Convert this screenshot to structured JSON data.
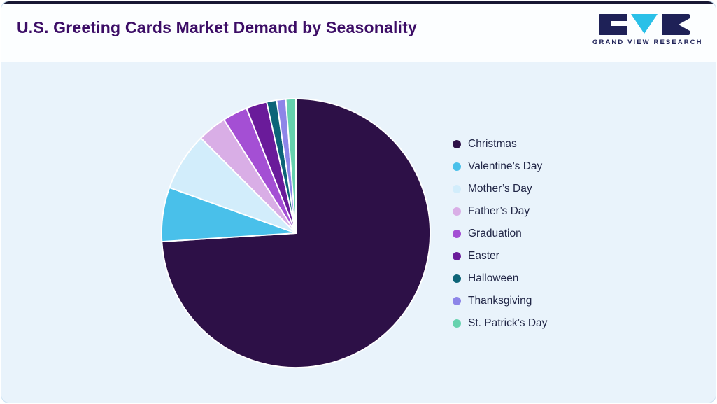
{
  "header": {
    "title": "U.S. Greeting Cards Market Demand by Seasonality",
    "logo_text": "GRAND VIEW RESEARCH"
  },
  "colors": {
    "top_bar": "#181834",
    "card_background": "#e9f3fb",
    "header_background": "#fcfeff",
    "title_text": "#3c0d66",
    "legend_text": "#212646",
    "logo_navy": "#1e2157",
    "logo_cyan": "#2ac0e8",
    "slice_stroke": "#ffffff"
  },
  "chart_data": {
    "type": "pie",
    "title": "U.S. Greeting Cards Market Demand by Seasonality",
    "legend_position": "right",
    "start_angle_deg": 0,
    "direction": "clockwise",
    "values_are_estimated_percent": true,
    "series": [
      {
        "name": "Christmas",
        "value": 74,
        "color": "#2d1047"
      },
      {
        "name": "Valentine’s Day",
        "value": 6.5,
        "color": "#49c0ea"
      },
      {
        "name": "Mother’s Day",
        "value": 7,
        "color": "#d2edfb"
      },
      {
        "name": "Father’s Day",
        "value": 3.5,
        "color": "#d9aee6"
      },
      {
        "name": "Graduation",
        "value": 3,
        "color": "#a44fd4"
      },
      {
        "name": "Easter",
        "value": 2.5,
        "color": "#6a1b9a"
      },
      {
        "name": "Halloween",
        "value": 1.2,
        "color": "#0d6478"
      },
      {
        "name": "Thanksgiving",
        "value": 1.1,
        "color": "#8d85e8"
      },
      {
        "name": "St. Patrick’s Day",
        "value": 1.2,
        "color": "#66d2ae"
      }
    ]
  }
}
